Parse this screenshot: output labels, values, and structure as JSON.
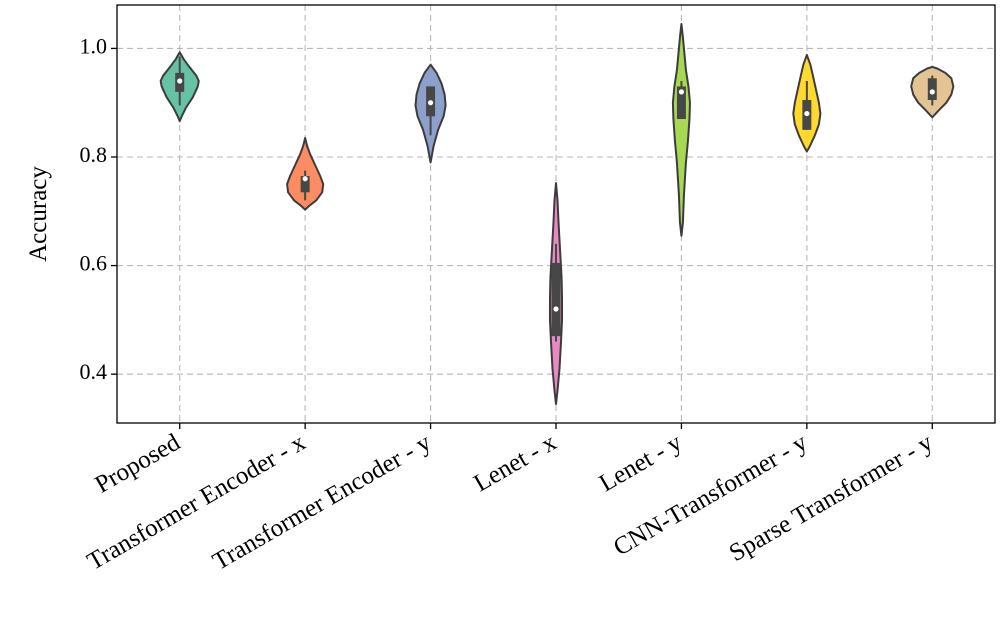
{
  "chart_data": {
    "type": "violin",
    "ylabel": "Accuracy",
    "ylim": [
      0.31,
      1.08
    ],
    "yticks": [
      0.4,
      0.6,
      0.8,
      1.0
    ],
    "ytick_labels": [
      "0.4",
      "0.6",
      "0.8",
      "1.0"
    ],
    "grid": true,
    "categories": [
      "Proposed",
      "Transformer Encoder - x",
      "Transformer Encoder - y",
      "Lenet - x",
      "Lenet - y",
      "CNN-Transformer - y",
      "Sparse Transformer - y"
    ],
    "violins": [
      {
        "category": "Proposed",
        "color": "#66c2a5",
        "profile": [
          [
            0.866,
            0
          ],
          [
            0.875,
            0.04
          ],
          [
            0.89,
            0.12
          ],
          [
            0.91,
            0.26
          ],
          [
            0.93,
            0.36
          ],
          [
            0.94,
            0.38
          ],
          [
            0.95,
            0.33
          ],
          [
            0.965,
            0.2
          ],
          [
            0.98,
            0.08
          ],
          [
            0.993,
            0
          ]
        ],
        "whisker": [
          0.895,
          0.985
        ],
        "q1": 0.92,
        "q3": 0.955,
        "median": 0.94
      },
      {
        "category": "Transformer Encoder - x",
        "color": "#fc8d62",
        "profile": [
          [
            0.703,
            0
          ],
          [
            0.71,
            0.08
          ],
          [
            0.72,
            0.22
          ],
          [
            0.735,
            0.34
          ],
          [
            0.75,
            0.36
          ],
          [
            0.765,
            0.3
          ],
          [
            0.785,
            0.2
          ],
          [
            0.805,
            0.1
          ],
          [
            0.82,
            0.04
          ],
          [
            0.835,
            0
          ]
        ],
        "whisker": [
          0.72,
          0.775
        ],
        "q1": 0.735,
        "q3": 0.765,
        "median": 0.76
      },
      {
        "category": "Transformer Encoder - y",
        "color": "#8da0cb",
        "profile": [
          [
            0.79,
            0
          ],
          [
            0.8,
            0.02
          ],
          [
            0.82,
            0.06
          ],
          [
            0.85,
            0.15
          ],
          [
            0.875,
            0.26
          ],
          [
            0.895,
            0.3
          ],
          [
            0.915,
            0.28
          ],
          [
            0.935,
            0.22
          ],
          [
            0.955,
            0.12
          ],
          [
            0.97,
            0
          ]
        ],
        "whisker": [
          0.84,
          0.93
        ],
        "q1": 0.875,
        "q3": 0.93,
        "median": 0.9
      },
      {
        "category": "Lenet - x",
        "color": "#e78ac3",
        "profile": [
          [
            0.345,
            0
          ],
          [
            0.37,
            0.03
          ],
          [
            0.41,
            0.07
          ],
          [
            0.46,
            0.1
          ],
          [
            0.5,
            0.12
          ],
          [
            0.54,
            0.12
          ],
          [
            0.58,
            0.11
          ],
          [
            0.63,
            0.08
          ],
          [
            0.68,
            0.05
          ],
          [
            0.72,
            0.03
          ],
          [
            0.752,
            0
          ]
        ],
        "whisker": [
          0.46,
          0.64
        ],
        "q1": 0.47,
        "q3": 0.605,
        "median": 0.52
      },
      {
        "category": "Lenet - y",
        "color": "#a6d854",
        "profile": [
          [
            0.655,
            0
          ],
          [
            0.68,
            0.03
          ],
          [
            0.73,
            0.05
          ],
          [
            0.79,
            0.09
          ],
          [
            0.83,
            0.13
          ],
          [
            0.87,
            0.16
          ],
          [
            0.9,
            0.17
          ],
          [
            0.93,
            0.14
          ],
          [
            0.96,
            0.09
          ],
          [
            0.99,
            0.06
          ],
          [
            1.02,
            0.03
          ],
          [
            1.045,
            0
          ]
        ],
        "whisker": [
          0.87,
          0.94
        ],
        "q1": 0.87,
        "q3": 0.93,
        "median": 0.92
      },
      {
        "category": "CNN-Transformer - y",
        "color": "#ffd92f",
        "profile": [
          [
            0.81,
            0
          ],
          [
            0.82,
            0.06
          ],
          [
            0.84,
            0.16
          ],
          [
            0.86,
            0.24
          ],
          [
            0.88,
            0.27
          ],
          [
            0.9,
            0.24
          ],
          [
            0.925,
            0.18
          ],
          [
            0.95,
            0.12
          ],
          [
            0.97,
            0.07
          ],
          [
            0.988,
            0
          ]
        ],
        "whisker": [
          0.85,
          0.94
        ],
        "q1": 0.85,
        "q3": 0.905,
        "median": 0.88
      },
      {
        "category": "Sparse Transformer - y",
        "color": "#e5c494",
        "profile": [
          [
            0.873,
            0
          ],
          [
            0.885,
            0.12
          ],
          [
            0.9,
            0.28
          ],
          [
            0.915,
            0.38
          ],
          [
            0.93,
            0.42
          ],
          [
            0.945,
            0.38
          ],
          [
            0.955,
            0.26
          ],
          [
            0.963,
            0.1
          ],
          [
            0.966,
            0
          ]
        ],
        "whisker": [
          0.895,
          0.95
        ],
        "q1": 0.905,
        "q3": 0.945,
        "median": 0.92
      }
    ]
  }
}
